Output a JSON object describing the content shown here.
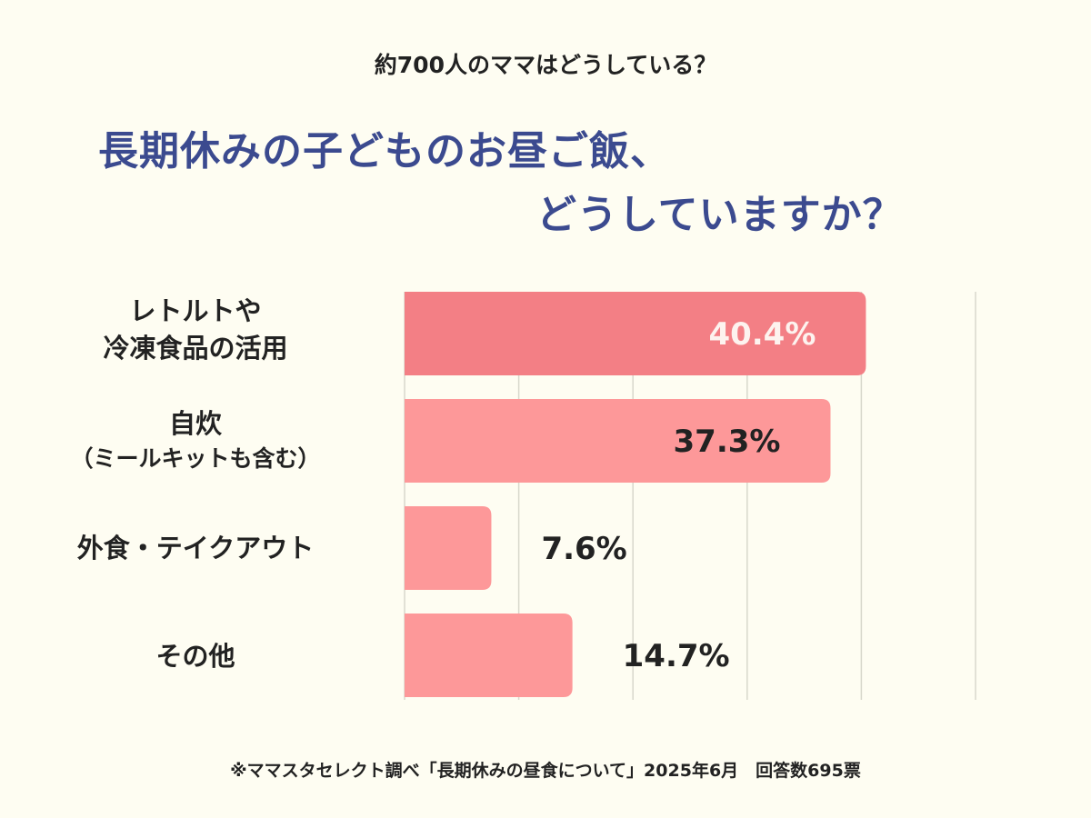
{
  "header": {
    "subtitle": "約700人のママはどうしている？",
    "title_line1": "長期休みの子どものお昼ご飯、",
    "title_line2": "どうしていますか？"
  },
  "chart_data": {
    "type": "bar",
    "orientation": "horizontal",
    "categories": [
      {
        "line1": "レトルトや",
        "line2": "冷凍食品の活用"
      },
      {
        "line1": "自炊",
        "line2": "（ミールキットも含む）"
      },
      {
        "line1": "外食・テイクアウト",
        "line2": ""
      },
      {
        "line1": "その他",
        "line2": ""
      }
    ],
    "values": [
      40.4,
      37.3,
      7.6,
      14.7
    ],
    "value_labels": [
      "40.4%",
      "37.3%",
      "7.6%",
      "14.7%"
    ],
    "xlim": [
      0,
      50
    ],
    "grid": true,
    "colors": {
      "highlight": "#f37f85",
      "bar": "#fd9899",
      "grid": "#d8d8cc",
      "highlight_label": "#fdf3ef",
      "label": "#222222"
    }
  },
  "footnote": "※ママスタセレクト調べ「長期休みの昼食について」2025年6月　回答数695票"
}
